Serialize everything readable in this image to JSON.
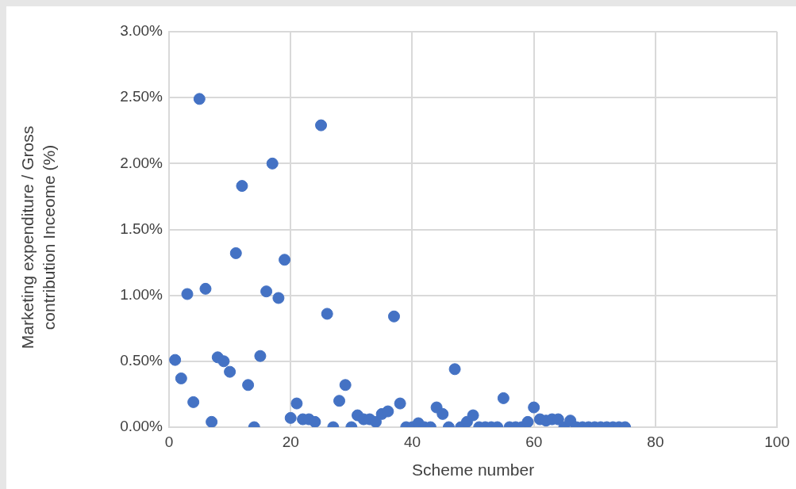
{
  "chart_data": {
    "type": "scatter",
    "xlabel": "Scheme number",
    "ylabel": "Marketing expenditure / Gross contribution Inceome (%)",
    "x": [
      1,
      2,
      3,
      4,
      5,
      6,
      7,
      8,
      9,
      10,
      11,
      12,
      13,
      14,
      15,
      16,
      17,
      18,
      19,
      20,
      21,
      22,
      23,
      24,
      25,
      26,
      27,
      28,
      29,
      30,
      31,
      32,
      33,
      34,
      35,
      36,
      37,
      38,
      39,
      40,
      41,
      42,
      43,
      44,
      45,
      46,
      47,
      48,
      49,
      50,
      51,
      52,
      53,
      54,
      55,
      56,
      57,
      58,
      59,
      60,
      61,
      62,
      63,
      64,
      65,
      66,
      67,
      68,
      69,
      70,
      71,
      72,
      73,
      74,
      75
    ],
    "series": [
      {
        "color": "#4472c4",
        "values": [
          0.51,
          0.37,
          1.01,
          0.19,
          2.49,
          1.05,
          0.04,
          0.53,
          0.5,
          0.42,
          1.32,
          1.83,
          0.32,
          0,
          0.54,
          1.03,
          2.0,
          0.98,
          1.27,
          0.07,
          0.18,
          0.06,
          0.06,
          0.04,
          2.29,
          0.86,
          0,
          0.2,
          0.32,
          0,
          0.09,
          0.06,
          0.06,
          0.04,
          0.1,
          0.12,
          0.84,
          0.18,
          0,
          0,
          0.03,
          0,
          0,
          0.15,
          0.1,
          0,
          0.44,
          0,
          0.04,
          0.09,
          0,
          0,
          0,
          0,
          0.22,
          0,
          0,
          0,
          0.04,
          0.15,
          0.06,
          0.05,
          0.06,
          0.06,
          0,
          0.05,
          0,
          0,
          0,
          0,
          0,
          0,
          0,
          0,
          0
        ]
      }
    ],
    "xlim": [
      0,
      100
    ],
    "xticks": [
      0,
      20,
      40,
      60,
      80,
      100
    ],
    "ylim": [
      0,
      3
    ],
    "yticks": [
      {
        "value": 0,
        "label": "0.00%"
      },
      {
        "value": 0.5,
        "label": "0.50%"
      },
      {
        "value": 1,
        "label": "1.00%"
      },
      {
        "value": 1.5,
        "label": "1.50%"
      },
      {
        "value": 2,
        "label": "2.00%"
      },
      {
        "value": 2.5,
        "label": "2.50%"
      },
      {
        "value": 3,
        "label": "3.00%"
      }
    ],
    "grid": true,
    "legend": false,
    "marker": "circle"
  }
}
